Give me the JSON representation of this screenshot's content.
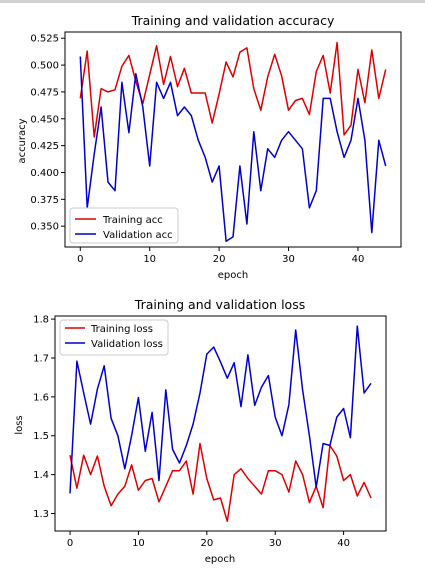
{
  "chart_data": [
    {
      "type": "line",
      "title": "Training and validation accuracy",
      "xlabel": "epoch",
      "ylabel": "accuracy",
      "xlim": [
        -2.2,
        46.2
      ],
      "ylim": [
        0.3306,
        0.5308
      ],
      "xticks": [
        0,
        10,
        20,
        30,
        40
      ],
      "yticks": [
        0.35,
        0.375,
        0.4,
        0.425,
        0.45,
        0.475,
        0.5,
        0.525
      ],
      "ytick_labels": [
        "0.350",
        "0.375",
        "0.400",
        "0.425",
        "0.450",
        "0.475",
        "0.500",
        "0.525"
      ],
      "legend_position": "lower-left",
      "grid": false,
      "series": [
        {
          "name": "Training acc",
          "color": "#dd0000",
          "x": [
            0,
            1,
            2,
            3,
            4,
            5,
            6,
            7,
            8,
            9,
            10,
            11,
            12,
            13,
            14,
            15,
            16,
            17,
            18,
            19,
            20,
            21,
            22,
            23,
            24,
            25,
            26,
            27,
            28,
            29,
            30,
            31,
            32,
            33,
            34,
            35,
            36,
            37,
            38,
            39,
            40,
            41,
            42,
            43,
            44
          ],
          "values": [
            0.469,
            0.513,
            0.433,
            0.478,
            0.475,
            0.477,
            0.499,
            0.509,
            0.485,
            0.464,
            0.491,
            0.518,
            0.482,
            0.508,
            0.48,
            0.497,
            0.474,
            0.474,
            0.474,
            0.446,
            0.473,
            0.503,
            0.489,
            0.512,
            0.516,
            0.478,
            0.458,
            0.489,
            0.51,
            0.49,
            0.458,
            0.467,
            0.469,
            0.454,
            0.494,
            0.509,
            0.474,
            0.521,
            0.435,
            0.444,
            0.496,
            0.465,
            0.514,
            0.469,
            0.496
          ]
        },
        {
          "name": "Validation acc",
          "color": "#0000cc",
          "x": [
            0,
            1,
            2,
            3,
            4,
            5,
            6,
            7,
            8,
            9,
            10,
            11,
            12,
            13,
            14,
            15,
            16,
            17,
            18,
            19,
            20,
            21,
            22,
            23,
            24,
            25,
            26,
            27,
            28,
            29,
            30,
            31,
            32,
            33,
            34,
            35,
            36,
            37,
            38,
            39,
            40,
            41,
            42,
            43,
            44
          ],
          "values": [
            0.508,
            0.367,
            0.417,
            0.461,
            0.391,
            0.383,
            0.484,
            0.437,
            0.492,
            0.461,
            0.406,
            0.484,
            0.469,
            0.484,
            0.453,
            0.461,
            0.453,
            0.43,
            0.414,
            0.391,
            0.406,
            0.336,
            0.34,
            0.406,
            0.352,
            0.438,
            0.383,
            0.422,
            0.414,
            0.43,
            0.438,
            0.43,
            0.422,
            0.367,
            0.383,
            0.469,
            0.469,
            0.438,
            0.414,
            0.43,
            0.469,
            0.43,
            0.344,
            0.43,
            0.406
          ]
        }
      ]
    },
    {
      "type": "line",
      "title": "Training and validation loss",
      "xlabel": "epoch",
      "ylabel": "loss",
      "xlim": [
        -2.2,
        46.2
      ],
      "ylim": [
        1.255,
        1.808
      ],
      "xticks": [
        0,
        10,
        20,
        30,
        40
      ],
      "yticks": [
        1.3,
        1.4,
        1.5,
        1.6,
        1.7,
        1.8
      ],
      "ytick_labels": [
        "1.3",
        "1.4",
        "1.5",
        "1.6",
        "1.7",
        "1.8"
      ],
      "legend_position": "upper-left",
      "grid": false,
      "series": [
        {
          "name": "Training loss",
          "color": "#dd0000",
          "x": [
            0,
            1,
            2,
            3,
            4,
            5,
            6,
            7,
            8,
            9,
            10,
            11,
            12,
            13,
            14,
            15,
            16,
            17,
            18,
            19,
            20,
            21,
            22,
            23,
            24,
            25,
            26,
            27,
            28,
            29,
            30,
            31,
            32,
            33,
            34,
            35,
            36,
            37,
            38,
            39,
            40,
            41,
            42,
            43,
            44
          ],
          "values": [
            1.45,
            1.365,
            1.45,
            1.4,
            1.448,
            1.37,
            1.32,
            1.35,
            1.37,
            1.425,
            1.36,
            1.385,
            1.39,
            1.33,
            1.37,
            1.41,
            1.41,
            1.435,
            1.35,
            1.48,
            1.39,
            1.335,
            1.34,
            1.28,
            1.4,
            1.415,
            1.39,
            1.37,
            1.35,
            1.41,
            1.41,
            1.4,
            1.355,
            1.435,
            1.4,
            1.328,
            1.37,
            1.315,
            1.475,
            1.448,
            1.385,
            1.4,
            1.345,
            1.38,
            1.34
          ]
        },
        {
          "name": "Validation loss",
          "color": "#0000cc",
          "x": [
            0,
            1,
            2,
            3,
            4,
            5,
            6,
            7,
            8,
            9,
            10,
            11,
            12,
            13,
            14,
            15,
            16,
            17,
            18,
            19,
            20,
            21,
            22,
            23,
            24,
            25,
            26,
            27,
            28,
            29,
            30,
            31,
            32,
            33,
            34,
            35,
            36,
            37,
            38,
            39,
            40,
            41,
            42,
            43,
            44
          ],
          "values": [
            1.352,
            1.692,
            1.61,
            1.53,
            1.62,
            1.68,
            1.545,
            1.5,
            1.415,
            1.5,
            1.598,
            1.46,
            1.56,
            1.385,
            1.618,
            1.465,
            1.43,
            1.475,
            1.53,
            1.61,
            1.71,
            1.728,
            1.69,
            1.648,
            1.688,
            1.575,
            1.708,
            1.578,
            1.625,
            1.655,
            1.548,
            1.5,
            1.58,
            1.772,
            1.618,
            1.5,
            1.368,
            1.48,
            1.475,
            1.548,
            1.57,
            1.495,
            1.782,
            1.61,
            1.635
          ]
        }
      ]
    }
  ]
}
